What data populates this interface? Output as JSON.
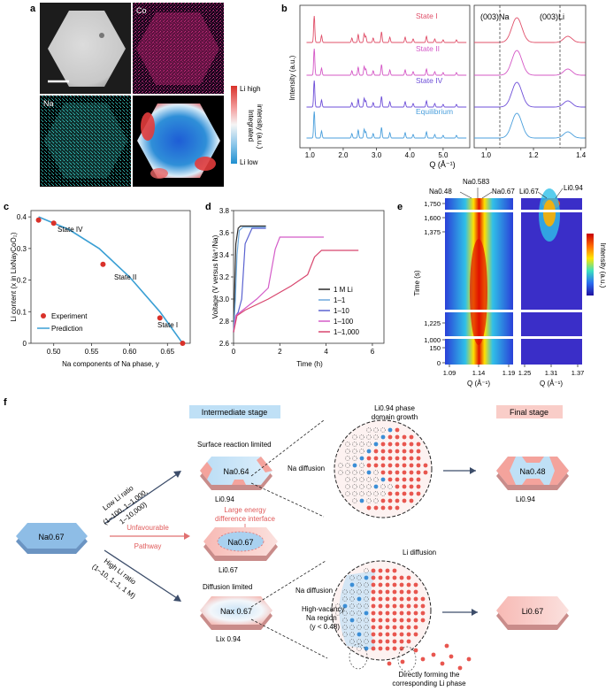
{
  "panels": {
    "a": {
      "letter": "a",
      "co_label": "Co",
      "na_label": "Na",
      "colorbar_high": "Li high",
      "colorbar_low": "Li low",
      "colorbar_title_1": "Integrated",
      "colorbar_title_2": "intensity (a.u.)"
    },
    "b": {
      "letter": "b",
      "ylabel": "Intensity (a.u.)",
      "xlabel": "Q (Å⁻¹)",
      "xticks_left": [
        "1.0",
        "2.0",
        "3.0",
        "4.0",
        "5.0"
      ],
      "xticks_right": [
        "1.0",
        "1.2",
        "1.4"
      ],
      "peak_na": "(003)Na",
      "peak_li": "(003)Li"
    },
    "c": {
      "letter": "c",
      "ylabel": "Li content (x in LixNayCoO₂)",
      "xlabel": "Na components of Na phase, y",
      "xticks": [
        "0.50",
        "0.55",
        "0.60",
        "0.65"
      ],
      "yticks": [
        "0",
        "0.1",
        "0.2",
        "0.3",
        "0.4"
      ],
      "legend_experiment": "Experiment",
      "legend_prediction": "Prediction"
    },
    "d": {
      "letter": "d",
      "ylabel": "Voltage (V versus Na⁺/Na)",
      "xlabel": "Time (h)",
      "xticks": [
        "0",
        "2",
        "4",
        "6"
      ],
      "yticks": [
        "2.6",
        "2.8",
        "3.0",
        "3.2",
        "3.4",
        "3.6",
        "3.8"
      ]
    },
    "e": {
      "letter": "e",
      "ylabel": "Time (s)",
      "colorbar_label": "Intensity (a.u.)",
      "yticks": [
        "0",
        "150",
        "1,000",
        "1,225",
        "1,375",
        "1,600",
        "1,750"
      ],
      "xticks_left": [
        "1.09",
        "1.14",
        "1.19"
      ],
      "xticks_right": [
        "1.25",
        "1.31",
        "1.37"
      ],
      "xlabel": "Q (Å⁻¹)",
      "top_na048": "Na0.48",
      "top_na0583": "Na0.583",
      "top_na067": "Na0.67",
      "top_li067": "Li0.67",
      "top_li094": "Li0.94"
    },
    "f": {
      "letter": "f",
      "intermediate_stage": "Intermediate stage",
      "final_stage": "Final stage",
      "phase_growth_1": "Li0.94 phase",
      "phase_growth_2": "domain growth",
      "surface_limited": "Surface reaction limited",
      "na064": "Na0.64",
      "li094_top": "Li0.94",
      "na_diffusion_top": "Na diffusion",
      "na048": "Na0.48",
      "li094_final": "Li0.94",
      "low_ratio_1": "Low Li ratio",
      "low_ratio_2": "(1–100, 1–1,000,",
      "low_ratio_3": "1–10,000)",
      "na067_start": "Na0.67",
      "unfavourable": "Unfavourable",
      "pathway": "Pathway",
      "large_energy_1": "Large energy",
      "large_energy_2": "difference interface",
      "na067_mid": "Na0.67",
      "li067_mid": "Li0.67",
      "high_ratio_1": "High Li ratio",
      "high_ratio_2": "(1–10, 1–1, 1 M)",
      "diffusion_limited": "Diffusion limited",
      "nax067": "Nax 0.67",
      "lix094": "Lix 0.94",
      "li_diffusion": "Li diffusion",
      "na_diffusion_bottom": "Na diffusion",
      "high_vacancy_1": "High-vacancy",
      "high_vacancy_2": "Na region",
      "high_vacancy_3": "(y < 0.48)",
      "directly_forming_1": "Directly forming the",
      "directly_forming_2": "corresponding Li phase",
      "li067_final": "Li0.67"
    }
  },
  "chart_data": [
    {
      "type": "line",
      "panel": "b",
      "xlim": [
        0.7,
        5.8
      ],
      "series": [
        {
          "name": "State I",
          "color": "#e0506a"
        },
        {
          "name": "State II",
          "color": "#d458c6"
        },
        {
          "name": "State IV",
          "color": "#6e4fd8"
        },
        {
          "name": "Equilibrium",
          "color": "#4a9fdc"
        }
      ]
    },
    {
      "type": "scatter",
      "panel": "c",
      "xlim": [
        0.47,
        0.68
      ],
      "ylim": [
        0,
        0.42
      ],
      "series": [
        {
          "name": "Experiment",
          "color": "#d9312a",
          "x": [
            0.48,
            0.5,
            0.565,
            0.64,
            0.67
          ],
          "y": [
            0.39,
            0.38,
            0.25,
            0.08,
            0.0
          ]
        },
        {
          "name": "Prediction",
          "color": "#3a9fd4",
          "x": [
            0.48,
            0.52,
            0.56,
            0.6,
            0.64,
            0.67
          ],
          "y": [
            0.4,
            0.36,
            0.3,
            0.21,
            0.1,
            0.0
          ]
        }
      ]
    },
    {
      "type": "line",
      "panel": "d",
      "xlim": [
        0,
        6.5
      ],
      "ylim": [
        2.6,
        3.8
      ],
      "series": [
        {
          "name": "1 M Li",
          "color": "#2b2b2b",
          "x": [
            0,
            0.05,
            0.1,
            0.2,
            0.3,
            1.4
          ],
          "y": [
            2.7,
            3.1,
            3.5,
            3.64,
            3.66,
            3.66
          ]
        },
        {
          "name": "1–1",
          "color": "#6fa9dc",
          "x": [
            0,
            0.08,
            0.15,
            0.25,
            0.4,
            1.4
          ],
          "y": [
            2.7,
            3.0,
            3.4,
            3.62,
            3.65,
            3.65
          ]
        },
        {
          "name": "1–10",
          "color": "#5a62d0",
          "x": [
            0,
            0.1,
            0.2,
            0.35,
            0.5,
            0.8,
            1.4
          ],
          "y": [
            2.7,
            2.85,
            2.88,
            3.0,
            3.5,
            3.64,
            3.64
          ]
        },
        {
          "name": "1–100",
          "color": "#d45cc8",
          "x": [
            0,
            0.1,
            0.4,
            1.0,
            1.5,
            1.8,
            2.0,
            3.9
          ],
          "y": [
            2.7,
            2.85,
            2.9,
            3.0,
            3.1,
            3.45,
            3.56,
            3.56
          ]
        },
        {
          "name": "1–1,000",
          "color": "#d8466e",
          "x": [
            0,
            0.15,
            0.5,
            1.5,
            2.5,
            3.2,
            3.5,
            3.8,
            5.4
          ],
          "y": [
            2.7,
            2.85,
            2.9,
            3.0,
            3.12,
            3.22,
            3.38,
            3.44,
            3.44
          ]
        }
      ]
    }
  ]
}
